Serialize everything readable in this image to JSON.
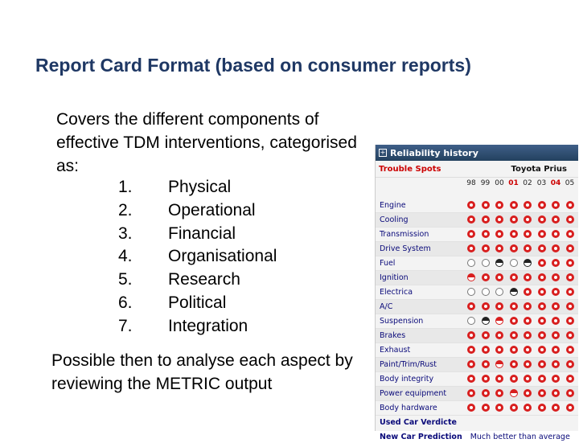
{
  "slide": {
    "title": "Report Card Format (based on consumer reports)",
    "intro": "Covers the different components of effective TDM interventions, categorised as:",
    "items": [
      {
        "num": "1.",
        "label": "Physical"
      },
      {
        "num": "2.",
        "label": "Operational"
      },
      {
        "num": "3.",
        "label": "Financial"
      },
      {
        "num": "4.",
        "label": "Organisational"
      },
      {
        "num": "5.",
        "label": "Research"
      },
      {
        "num": "6.",
        "label": "Political"
      },
      {
        "num": "7.",
        "label": "Integration"
      }
    ],
    "outro": "Possible then to analyse each aspect by reviewing the METRIC output"
  },
  "reliability": {
    "header": "Reliability history",
    "trouble_label": "Trouble Spots",
    "car": "Toyota Prius",
    "years": [
      "98",
      "99",
      "00",
      "01",
      "02",
      "03",
      "04",
      "05"
    ],
    "highlight_years": [
      "01",
      "04"
    ],
    "rating_colors": {
      "excellent": "#d81e1e",
      "very_good": "#d81e1e",
      "average": "#777777",
      "fair": "#222222"
    },
    "rows": [
      {
        "label": "Engine",
        "ratings": [
          "exc",
          "exc",
          "exc",
          "exc",
          "exc",
          "exc",
          "exc",
          "exc"
        ]
      },
      {
        "label": "Cooling",
        "ratings": [
          "exc",
          "exc",
          "exc",
          "exc",
          "exc",
          "exc",
          "exc",
          "exc"
        ]
      },
      {
        "label": "Transmission",
        "ratings": [
          "exc",
          "exc",
          "exc",
          "exc",
          "exc",
          "exc",
          "exc",
          "exc"
        ]
      },
      {
        "label": "Drive System",
        "ratings": [
          "exc",
          "exc",
          "exc",
          "exc",
          "exc",
          "exc",
          "exc",
          "exc"
        ]
      },
      {
        "label": "Fuel",
        "ratings": [
          "avg",
          "avg",
          "fair",
          "avg",
          "fair",
          "exc",
          "exc",
          "exc"
        ]
      },
      {
        "label": "Ignition",
        "ratings": [
          "vg",
          "exc",
          "exc",
          "exc",
          "exc",
          "exc",
          "exc",
          "exc"
        ]
      },
      {
        "label": "Electrica",
        "ratings": [
          "avg",
          "avg",
          "avg",
          "fair",
          "exc",
          "exc",
          "exc",
          "exc"
        ]
      },
      {
        "label": "A/C",
        "ratings": [
          "exc",
          "exc",
          "exc",
          "exc",
          "exc",
          "exc",
          "exc",
          "exc"
        ]
      },
      {
        "label": "Suspension",
        "ratings": [
          "avg",
          "fair",
          "vg",
          "exc",
          "exc",
          "exc",
          "exc",
          "exc"
        ]
      },
      {
        "label": "Brakes",
        "ratings": [
          "exc",
          "exc",
          "exc",
          "exc",
          "exc",
          "exc",
          "exc",
          "exc"
        ]
      },
      {
        "label": "Exhaust",
        "ratings": [
          "exc",
          "exc",
          "exc",
          "exc",
          "exc",
          "exc",
          "exc",
          "exc"
        ]
      },
      {
        "label": "Paint/Trim/Rust",
        "ratings": [
          "exc",
          "exc",
          "vg",
          "exc",
          "exc",
          "exc",
          "exc",
          "exc"
        ]
      },
      {
        "label": "Body integrity",
        "ratings": [
          "exc",
          "exc",
          "exc",
          "exc",
          "exc",
          "exc",
          "exc",
          "exc"
        ]
      },
      {
        "label": "Power equipment",
        "ratings": [
          "exc",
          "exc",
          "exc",
          "vg",
          "exc",
          "exc",
          "exc",
          "exc"
        ]
      },
      {
        "label": "Body hardware",
        "ratings": [
          "exc",
          "exc",
          "exc",
          "exc",
          "exc",
          "exc",
          "exc",
          "exc"
        ]
      }
    ],
    "verdict_label": "Used Car Verdicte",
    "prediction_label": "New Car Prediction",
    "prediction_value": "Much better than average"
  }
}
